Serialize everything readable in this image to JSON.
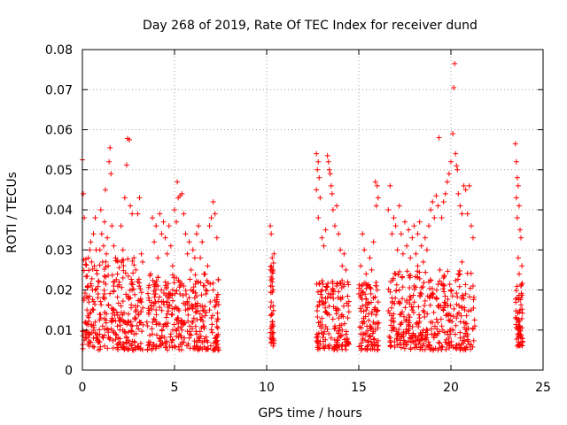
{
  "chart_data": {
    "type": "scatter",
    "title": "Day 268 of 2019, Rate Of TEC Index for receiver dund",
    "xlabel": "GPS time / hours",
    "ylabel": "ROTI / TECUs",
    "xlim": [
      0,
      25
    ],
    "ylim": [
      0,
      0.08
    ],
    "x_ticks": [
      0,
      5,
      10,
      15,
      20,
      25
    ],
    "x_tick_labels": [
      "0",
      "5",
      "10",
      "15",
      "20",
      "25"
    ],
    "y_ticks": [
      0,
      0.01,
      0.02,
      0.03,
      0.04,
      0.05,
      0.06,
      0.07,
      0.08
    ],
    "y_tick_labels": [
      "0",
      "0.01",
      "0.02",
      "0.03",
      "0.04",
      "0.05",
      "0.06",
      "0.07",
      "0.08"
    ],
    "grid": true,
    "marker": "+",
    "color": "#ff0000",
    "points": [
      [
        0.0,
        0.0525
      ],
      [
        0.05,
        0.044
      ],
      [
        0.1,
        0.038
      ],
      [
        0.15,
        0.012
      ],
      [
        0.2,
        0.009
      ],
      [
        0.25,
        0.015
      ],
      [
        0.3,
        0.021
      ],
      [
        0.35,
        0.017
      ],
      [
        0.4,
        0.03
      ],
      [
        0.45,
        0.032
      ],
      [
        0.5,
        0.027
      ],
      [
        0.55,
        0.02
      ],
      [
        0.6,
        0.034
      ],
      [
        0.65,
        0.026
      ],
      [
        0.7,
        0.038
      ],
      [
        0.75,
        0.03
      ],
      [
        0.8,
        0.024
      ],
      [
        0.85,
        0.019
      ],
      [
        0.9,
        0.022
      ],
      [
        0.95,
        0.03
      ],
      [
        1.0,
        0.04
      ],
      [
        1.05,
        0.034
      ],
      [
        1.1,
        0.027
      ],
      [
        1.15,
        0.031
      ],
      [
        1.2,
        0.037
      ],
      [
        1.25,
        0.045
      ],
      [
        1.3,
        0.029
      ],
      [
        1.35,
        0.033
      ],
      [
        1.4,
        0.026
      ],
      [
        1.45,
        0.052
      ],
      [
        1.5,
        0.0555
      ],
      [
        1.55,
        0.049
      ],
      [
        1.6,
        0.036
      ],
      [
        1.7,
        0.031
      ],
      [
        1.8,
        0.028
      ],
      [
        1.9,
        0.024
      ],
      [
        2.0,
        0.022
      ],
      [
        2.1,
        0.036
      ],
      [
        2.2,
        0.03
      ],
      [
        2.3,
        0.043
      ],
      [
        2.4,
        0.0512
      ],
      [
        2.45,
        0.0578
      ],
      [
        2.55,
        0.0575
      ],
      [
        2.6,
        0.041
      ],
      [
        2.7,
        0.039
      ],
      [
        2.8,
        0.028
      ],
      [
        2.9,
        0.025
      ],
      [
        3.0,
        0.039
      ],
      [
        3.1,
        0.043
      ],
      [
        3.2,
        0.029
      ],
      [
        0.1,
        0.0075
      ],
      [
        0.2,
        0.008
      ],
      [
        0.3,
        0.0065
      ],
      [
        0.4,
        0.009
      ],
      [
        0.5,
        0.011
      ],
      [
        0.6,
        0.008
      ],
      [
        0.7,
        0.012
      ],
      [
        0.8,
        0.009
      ],
      [
        0.9,
        0.007
      ],
      [
        1.0,
        0.013
      ],
      [
        1.1,
        0.011
      ],
      [
        1.2,
        0.006
      ],
      [
        1.3,
        0.014
      ],
      [
        1.4,
        0.01
      ],
      [
        1.5,
        0.008
      ],
      [
        1.6,
        0.012
      ],
      [
        1.7,
        0.015
      ],
      [
        1.8,
        0.009
      ],
      [
        1.9,
        0.011
      ],
      [
        2.0,
        0.013
      ],
      [
        2.1,
        0.016
      ],
      [
        2.2,
        0.01
      ],
      [
        2.3,
        0.012
      ],
      [
        2.4,
        0.008
      ],
      [
        2.5,
        0.014
      ],
      [
        2.6,
        0.018
      ],
      [
        2.7,
        0.011
      ],
      [
        2.8,
        0.009
      ],
      [
        2.9,
        0.013
      ],
      [
        3.0,
        0.006
      ],
      [
        3.1,
        0.012
      ],
      [
        3.2,
        0.017
      ],
      [
        0.3,
        0.018
      ],
      [
        0.7,
        0.02
      ],
      [
        1.2,
        0.019
      ],
      [
        1.7,
        0.021
      ],
      [
        2.2,
        0.023
      ],
      [
        2.7,
        0.02
      ],
      [
        3.0,
        0.016
      ],
      [
        0.6,
        0.015
      ],
      [
        3.5,
        0.012
      ],
      [
        3.6,
        0.018
      ],
      [
        3.7,
        0.024
      ],
      [
        3.8,
        0.038
      ],
      [
        3.9,
        0.032
      ],
      [
        4.0,
        0.036
      ],
      [
        4.1,
        0.028
      ],
      [
        4.2,
        0.039
      ],
      [
        4.3,
        0.034
      ],
      [
        4.4,
        0.037
      ],
      [
        4.5,
        0.033
      ],
      [
        4.6,
        0.029
      ],
      [
        4.7,
        0.036
      ],
      [
        4.8,
        0.031
      ],
      [
        4.9,
        0.026
      ],
      [
        5.0,
        0.04
      ],
      [
        5.1,
        0.037
      ],
      [
        5.15,
        0.047
      ],
      [
        5.2,
        0.043
      ],
      [
        5.3,
        0.0435
      ],
      [
        5.4,
        0.044
      ],
      [
        5.5,
        0.039
      ],
      [
        5.6,
        0.034
      ],
      [
        5.7,
        0.029
      ],
      [
        5.8,
        0.032
      ],
      [
        5.9,
        0.025
      ],
      [
        6.0,
        0.03
      ],
      [
        6.1,
        0.028
      ],
      [
        6.2,
        0.034
      ],
      [
        6.3,
        0.036
      ],
      [
        6.4,
        0.028
      ],
      [
        6.5,
        0.032
      ],
      [
        6.6,
        0.024
      ],
      [
        6.7,
        0.02
      ],
      [
        6.8,
        0.026
      ],
      [
        6.9,
        0.036
      ],
      [
        7.0,
        0.038
      ],
      [
        7.1,
        0.042
      ],
      [
        7.2,
        0.039
      ],
      [
        7.3,
        0.033
      ],
      [
        3.6,
        0.007
      ],
      [
        3.8,
        0.009
      ],
      [
        4.0,
        0.012
      ],
      [
        4.2,
        0.008
      ],
      [
        4.4,
        0.011
      ],
      [
        4.6,
        0.014
      ],
      [
        4.8,
        0.009
      ],
      [
        5.0,
        0.006
      ],
      [
        5.2,
        0.013
      ],
      [
        5.4,
        0.01
      ],
      [
        5.6,
        0.015
      ],
      [
        5.8,
        0.008
      ],
      [
        6.0,
        0.012
      ],
      [
        6.2,
        0.009
      ],
      [
        6.4,
        0.016
      ],
      [
        6.6,
        0.011
      ],
      [
        6.8,
        0.007
      ],
      [
        7.0,
        0.013
      ],
      [
        7.2,
        0.008
      ],
      [
        7.4,
        0.005
      ],
      [
        3.7,
        0.016
      ],
      [
        3.9,
        0.019
      ],
      [
        4.1,
        0.021
      ],
      [
        4.3,
        0.017
      ],
      [
        4.5,
        0.022
      ],
      [
        4.7,
        0.018
      ],
      [
        4.9,
        0.02
      ],
      [
        5.1,
        0.023
      ],
      [
        5.3,
        0.019
      ],
      [
        5.5,
        0.021
      ],
      [
        5.7,
        0.017
      ],
      [
        5.9,
        0.02
      ],
      [
        6.1,
        0.018
      ],
      [
        6.3,
        0.022
      ],
      [
        6.5,
        0.016
      ],
      [
        6.7,
        0.019
      ],
      [
        6.9,
        0.015
      ],
      [
        7.1,
        0.02
      ],
      [
        7.3,
        0.017
      ],
      [
        4.0,
        0.015
      ],
      [
        10.2,
        0.036
      ],
      [
        10.25,
        0.034
      ],
      [
        10.3,
        0.028
      ],
      [
        10.35,
        0.025
      ],
      [
        10.3,
        0.022
      ],
      [
        10.35,
        0.02
      ],
      [
        10.25,
        0.017
      ],
      [
        10.3,
        0.014
      ],
      [
        10.35,
        0.011
      ],
      [
        10.3,
        0.009
      ],
      [
        10.25,
        0.007
      ],
      [
        10.35,
        0.006
      ],
      [
        10.3,
        0.012
      ],
      [
        10.4,
        0.029
      ],
      [
        10.2,
        0.008
      ],
      [
        12.7,
        0.054
      ],
      [
        12.75,
        0.05
      ],
      [
        12.8,
        0.052
      ],
      [
        12.85,
        0.048
      ],
      [
        12.7,
        0.045
      ],
      [
        12.9,
        0.043
      ],
      [
        12.8,
        0.038
      ],
      [
        13.0,
        0.033
      ],
      [
        13.1,
        0.031
      ],
      [
        13.2,
        0.035
      ],
      [
        13.3,
        0.0535
      ],
      [
        13.35,
        0.052
      ],
      [
        13.4,
        0.05
      ],
      [
        13.45,
        0.049
      ],
      [
        13.5,
        0.046
      ],
      [
        13.55,
        0.044
      ],
      [
        13.6,
        0.04
      ],
      [
        13.7,
        0.036
      ],
      [
        13.8,
        0.041
      ],
      [
        13.9,
        0.034
      ],
      [
        14.0,
        0.03
      ],
      [
        14.1,
        0.026
      ],
      [
        14.2,
        0.029
      ],
      [
        14.3,
        0.025
      ],
      [
        14.4,
        0.022
      ],
      [
        12.9,
        0.012
      ],
      [
        13.1,
        0.009
      ],
      [
        13.3,
        0.014
      ],
      [
        13.5,
        0.008
      ],
      [
        13.7,
        0.011
      ],
      [
        13.9,
        0.015
      ],
      [
        14.1,
        0.01
      ],
      [
        14.3,
        0.007
      ],
      [
        12.8,
        0.006
      ],
      [
        13.2,
        0.017
      ],
      [
        13.6,
        0.019
      ],
      [
        14.0,
        0.018
      ],
      [
        14.4,
        0.013
      ],
      [
        13.0,
        0.02
      ],
      [
        13.8,
        0.021
      ],
      [
        15.0,
        0.019
      ],
      [
        15.1,
        0.026
      ],
      [
        15.2,
        0.034
      ],
      [
        15.3,
        0.03
      ],
      [
        15.4,
        0.024
      ],
      [
        15.5,
        0.021
      ],
      [
        15.6,
        0.028
      ],
      [
        15.7,
        0.025
      ],
      [
        15.8,
        0.032
      ],
      [
        15.9,
        0.047
      ],
      [
        16.0,
        0.046
      ],
      [
        16.05,
        0.043
      ],
      [
        15.95,
        0.041
      ],
      [
        15.1,
        0.009
      ],
      [
        15.3,
        0.012
      ],
      [
        15.5,
        0.007
      ],
      [
        15.7,
        0.014
      ],
      [
        15.9,
        0.01
      ],
      [
        16.0,
        0.006
      ],
      [
        15.2,
        0.016
      ],
      [
        15.4,
        0.015
      ],
      [
        15.6,
        0.011
      ],
      [
        15.8,
        0.018
      ],
      [
        16.0,
        0.02
      ],
      [
        16.6,
        0.04
      ],
      [
        16.7,
        0.046
      ],
      [
        16.8,
        0.034
      ],
      [
        16.9,
        0.038
      ],
      [
        17.0,
        0.036
      ],
      [
        17.1,
        0.03
      ],
      [
        17.2,
        0.041
      ],
      [
        17.3,
        0.034
      ],
      [
        17.4,
        0.029
      ],
      [
        17.5,
        0.037
      ],
      [
        17.6,
        0.031
      ],
      [
        17.7,
        0.035
      ],
      [
        17.8,
        0.028
      ],
      [
        17.9,
        0.033
      ],
      [
        18.0,
        0.036
      ],
      [
        18.1,
        0.029
      ],
      [
        18.2,
        0.034
      ],
      [
        18.3,
        0.037
      ],
      [
        18.4,
        0.031
      ],
      [
        18.5,
        0.027
      ],
      [
        18.6,
        0.033
      ],
      [
        18.7,
        0.03
      ],
      [
        18.8,
        0.036
      ],
      [
        18.9,
        0.04
      ],
      [
        19.0,
        0.042
      ],
      [
        19.1,
        0.038
      ],
      [
        19.2,
        0.0435
      ],
      [
        19.3,
        0.041
      ],
      [
        19.35,
        0.058
      ],
      [
        19.5,
        0.038
      ],
      [
        19.6,
        0.042
      ],
      [
        19.7,
        0.044
      ],
      [
        19.8,
        0.047
      ],
      [
        19.9,
        0.049
      ],
      [
        20.0,
        0.052
      ],
      [
        20.1,
        0.059
      ],
      [
        20.15,
        0.0705
      ],
      [
        20.2,
        0.0765
      ],
      [
        20.25,
        0.054
      ],
      [
        20.3,
        0.051
      ],
      [
        20.35,
        0.05
      ],
      [
        20.4,
        0.044
      ],
      [
        20.5,
        0.041
      ],
      [
        20.6,
        0.039
      ],
      [
        20.7,
        0.046
      ],
      [
        20.8,
        0.045
      ],
      [
        20.9,
        0.039
      ],
      [
        21.0,
        0.046
      ],
      [
        21.1,
        0.036
      ],
      [
        21.2,
        0.033
      ],
      [
        16.7,
        0.008
      ],
      [
        16.9,
        0.012
      ],
      [
        17.1,
        0.009
      ],
      [
        17.3,
        0.014
      ],
      [
        17.5,
        0.007
      ],
      [
        17.7,
        0.011
      ],
      [
        17.9,
        0.015
      ],
      [
        18.1,
        0.008
      ],
      [
        18.3,
        0.013
      ],
      [
        18.5,
        0.01
      ],
      [
        18.7,
        0.006
      ],
      [
        18.9,
        0.012
      ],
      [
        19.1,
        0.009
      ],
      [
        19.3,
        0.016
      ],
      [
        19.5,
        0.011
      ],
      [
        19.7,
        0.007
      ],
      [
        19.9,
        0.014
      ],
      [
        20.1,
        0.01
      ],
      [
        20.3,
        0.013
      ],
      [
        20.5,
        0.008
      ],
      [
        20.7,
        0.012
      ],
      [
        20.9,
        0.009
      ],
      [
        21.1,
        0.015
      ],
      [
        21.3,
        0.011
      ],
      [
        16.8,
        0.018
      ],
      [
        17.2,
        0.02
      ],
      [
        17.6,
        0.017
      ],
      [
        18.0,
        0.021
      ],
      [
        18.4,
        0.019
      ],
      [
        18.8,
        0.022
      ],
      [
        19.2,
        0.018
      ],
      [
        19.6,
        0.023
      ],
      [
        20.0,
        0.02
      ],
      [
        20.4,
        0.024
      ],
      [
        20.8,
        0.019
      ],
      [
        21.2,
        0.021
      ],
      [
        17.0,
        0.024
      ],
      [
        18.2,
        0.026
      ],
      [
        19.4,
        0.025
      ],
      [
        20.6,
        0.027
      ],
      [
        23.5,
        0.0565
      ],
      [
        23.55,
        0.052
      ],
      [
        23.6,
        0.048
      ],
      [
        23.65,
        0.046
      ],
      [
        23.55,
        0.043
      ],
      [
        23.7,
        0.041
      ],
      [
        23.6,
        0.038
      ],
      [
        23.75,
        0.035
      ],
      [
        23.8,
        0.033
      ],
      [
        23.65,
        0.028
      ],
      [
        23.7,
        0.024
      ],
      [
        23.8,
        0.021
      ],
      [
        23.6,
        0.018
      ],
      [
        23.75,
        0.015
      ],
      [
        23.65,
        0.012
      ],
      [
        23.7,
        0.01
      ],
      [
        23.8,
        0.008
      ],
      [
        23.6,
        0.006
      ],
      [
        23.75,
        0.009
      ],
      [
        23.85,
        0.026
      ]
    ],
    "bands": [
      {
        "x0": 0.0,
        "x1": 3.3,
        "y0": 0.005,
        "y1": 0.028
      },
      {
        "x0": 3.5,
        "x1": 7.4,
        "y0": 0.005,
        "y1": 0.024
      },
      {
        "x0": 10.2,
        "x1": 10.4,
        "y0": 0.006,
        "y1": 0.027
      },
      {
        "x0": 12.7,
        "x1": 14.5,
        "y0": 0.005,
        "y1": 0.023
      },
      {
        "x0": 15.0,
        "x1": 16.1,
        "y0": 0.005,
        "y1": 0.022
      },
      {
        "x0": 16.6,
        "x1": 21.3,
        "y0": 0.005,
        "y1": 0.025
      },
      {
        "x0": 23.5,
        "x1": 23.9,
        "y0": 0.006,
        "y1": 0.022
      }
    ]
  }
}
